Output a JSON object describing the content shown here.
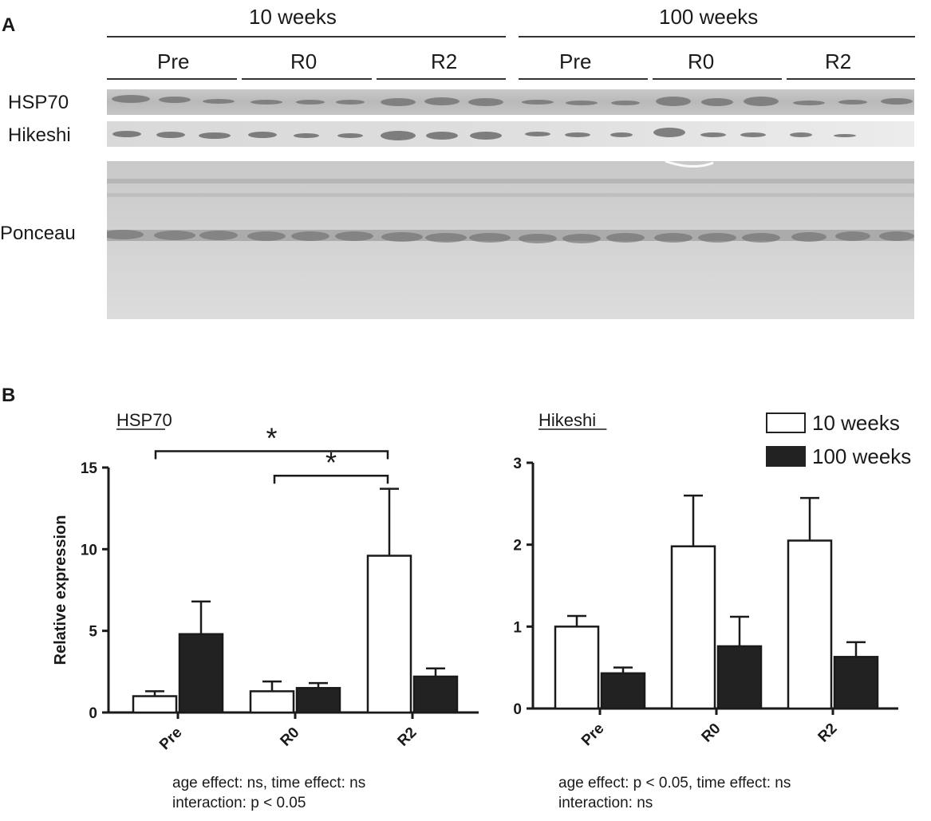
{
  "panel_a": {
    "letter": "A",
    "age_groups": [
      "10 weeks",
      "100 weeks"
    ],
    "time_labels": [
      "Pre",
      "R0",
      "R2",
      "Pre",
      "R0",
      "R2"
    ],
    "row_labels": [
      "HSP70",
      "Hikeshi",
      "Ponceau"
    ]
  },
  "panel_b": {
    "letter": "B",
    "legend": [
      {
        "label": "10 weeks",
        "color": "#ffffff"
      },
      {
        "label": "100 weeks",
        "color": "#222222"
      }
    ],
    "stats_left": [
      "age effect: ns, time effect: ns",
      "interaction:  p < 0.05"
    ],
    "stats_right": [
      "age effect: p < 0.05, time effect: ns",
      "interaction: ns"
    ]
  },
  "chart_data": [
    {
      "type": "bar",
      "title": "HSP70",
      "ylabel": "Relative expression",
      "xlabel": "",
      "categories": [
        "Pre",
        "R0",
        "R2"
      ],
      "ylim": [
        0,
        15
      ],
      "yticks": [
        "0",
        "5",
        "10",
        "15"
      ],
      "series": [
        {
          "name": "10 weeks",
          "values": [
            1.0,
            1.3,
            9.6
          ],
          "errors": [
            0.3,
            0.6,
            4.1
          ]
        },
        {
          "name": "100 weeks",
          "values": [
            4.8,
            1.5,
            2.2
          ],
          "errors": [
            2.0,
            0.3,
            0.5
          ]
        }
      ],
      "annotations": [
        "*",
        "*"
      ]
    },
    {
      "type": "bar",
      "title": "Hikeshi",
      "ylabel": "",
      "xlabel": "",
      "categories": [
        "Pre",
        "R0",
        "R2"
      ],
      "ylim": [
        0,
        3
      ],
      "yticks": [
        "0",
        "1",
        "2",
        "3"
      ],
      "series": [
        {
          "name": "10 weeks",
          "values": [
            1.0,
            1.98,
            2.05
          ],
          "errors": [
            0.13,
            0.62,
            0.52
          ]
        },
        {
          "name": "100 weeks",
          "values": [
            0.43,
            0.76,
            0.63
          ],
          "errors": [
            0.07,
            0.36,
            0.18
          ]
        }
      ]
    }
  ]
}
